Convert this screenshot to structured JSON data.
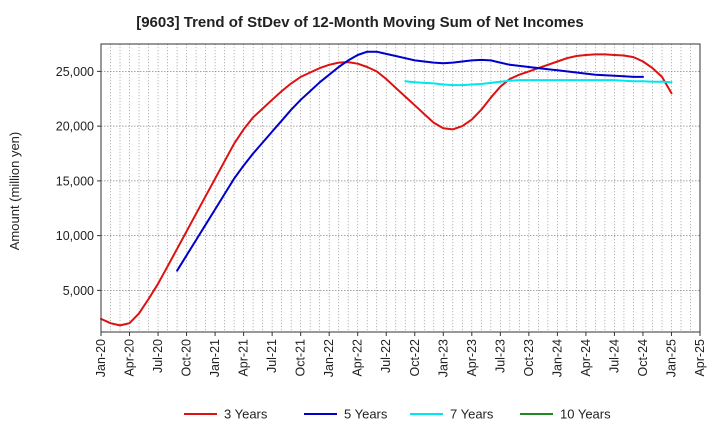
{
  "chart_data": {
    "type": "line",
    "title": "[9603]  Trend of StDev of 12-Month Moving Sum of Net Incomes",
    "ylabel": "Amount (million yen)",
    "xlabel": "",
    "ylim": [
      1200,
      27500
    ],
    "y_ticks": [
      5000,
      10000,
      15000,
      20000,
      25000
    ],
    "y_tick_labels": [
      "5,000",
      "10,000",
      "15,000",
      "20,000",
      "25,000"
    ],
    "x_tick_labels": [
      "Jan-20",
      "Apr-20",
      "Jul-20",
      "Oct-20",
      "Jan-21",
      "Apr-21",
      "Jul-21",
      "Oct-21",
      "Jan-22",
      "Apr-22",
      "Jul-22",
      "Oct-22",
      "Jan-23",
      "Apr-23",
      "Jul-23",
      "Oct-23",
      "Jan-24",
      "Apr-24",
      "Jul-24",
      "Oct-24",
      "Jan-25",
      "Apr-25"
    ],
    "x_start": "Jan-20",
    "x_end": "Apr-25",
    "grid": true,
    "legend_position": "bottom",
    "series": [
      {
        "name": "3 Years",
        "color": "#dd1111",
        "x": [
          "Jan-20",
          "Feb-20",
          "Mar-20",
          "Apr-20",
          "May-20",
          "Jun-20",
          "Jul-20",
          "Aug-20",
          "Sep-20",
          "Oct-20",
          "Nov-20",
          "Dec-20",
          "Jan-21",
          "Feb-21",
          "Mar-21",
          "Apr-21",
          "May-21",
          "Jun-21",
          "Jul-21",
          "Aug-21",
          "Sep-21",
          "Oct-21",
          "Nov-21",
          "Dec-21",
          "Jan-22",
          "Feb-22",
          "Mar-22",
          "Apr-22",
          "May-22",
          "Jun-22",
          "Jul-22",
          "Aug-22",
          "Sep-22",
          "Oct-22",
          "Nov-22",
          "Dec-22",
          "Jan-23",
          "Feb-23",
          "Mar-23",
          "Apr-23",
          "May-23",
          "Jun-23",
          "Jul-23",
          "Aug-23",
          "Sep-23",
          "Oct-23",
          "Nov-23",
          "Dec-23",
          "Jan-24",
          "Feb-24",
          "Mar-24",
          "Apr-24",
          "May-24",
          "Jun-24",
          "Jul-24",
          "Aug-24",
          "Sep-24",
          "Oct-24",
          "Nov-24",
          "Dec-24",
          "Jan-25"
        ],
        "values": [
          2400,
          2000,
          1800,
          2000,
          2900,
          4200,
          5600,
          7200,
          8800,
          10400,
          12000,
          13600,
          15200,
          16800,
          18400,
          19700,
          20800,
          21600,
          22400,
          23200,
          23900,
          24500,
          24900,
          25300,
          25600,
          25800,
          25850,
          25700,
          25400,
          25000,
          24300,
          23500,
          22700,
          21900,
          21100,
          20300,
          19800,
          19700,
          20000,
          20600,
          21500,
          22600,
          23600,
          24300,
          24700,
          25000,
          25300,
          25600,
          25900,
          26200,
          26400,
          26500,
          26550,
          26550,
          26500,
          26450,
          26300,
          25900,
          25300,
          24500,
          23000
        ]
      },
      {
        "name": "5 Years",
        "color": "#0000cc",
        "x": [
          "Jan-20",
          "Feb-20",
          "Mar-20",
          "Apr-20",
          "May-20",
          "Jun-20",
          "Jul-20",
          "Aug-20",
          "Sep-20",
          "Oct-20",
          "Nov-20",
          "Dec-20",
          "Jan-21",
          "Feb-21",
          "Mar-21",
          "Apr-21",
          "May-21",
          "Jun-21",
          "Jul-21",
          "Aug-21",
          "Sep-21",
          "Oct-21",
          "Nov-21",
          "Dec-21",
          "Jan-22",
          "Feb-22",
          "Mar-22",
          "Apr-22",
          "May-22",
          "Jun-22",
          "Jul-22",
          "Aug-22",
          "Sep-22",
          "Oct-22",
          "Nov-22",
          "Dec-22",
          "Jan-23",
          "Feb-23",
          "Mar-23",
          "Apr-23",
          "May-23",
          "Jun-23",
          "Jul-23",
          "Aug-23",
          "Sep-23",
          "Oct-23",
          "Nov-23",
          "Dec-23",
          "Jan-24",
          "Feb-24",
          "Mar-24",
          "Apr-24",
          "May-24",
          "Jun-24",
          "Jul-24",
          "Aug-24",
          "Sep-24",
          "Oct-24",
          "Nov-24",
          "Dec-24",
          "Jan-25"
        ],
        "values": [
          null,
          null,
          null,
          null,
          null,
          null,
          null,
          null,
          6800,
          8200,
          9600,
          11000,
          12400,
          13800,
          15200,
          16400,
          17500,
          18500,
          19500,
          20500,
          21500,
          22400,
          23200,
          24000,
          24700,
          25400,
          26000,
          26500,
          26800,
          26800,
          26600,
          26400,
          26200,
          26000,
          25900,
          25800,
          25750,
          25800,
          25900,
          26000,
          26050,
          26000,
          25800,
          25600,
          25500,
          25400,
          25300,
          25200,
          25100,
          25000,
          24900,
          24800,
          24700,
          24650,
          24600,
          24550,
          24500,
          24500,
          null,
          null,
          null
        ]
      },
      {
        "name": "7 Years",
        "color": "#00e5ee",
        "x": [
          "Jan-20",
          "Feb-20",
          "Mar-20",
          "Apr-20",
          "May-20",
          "Jun-20",
          "Jul-20",
          "Aug-20",
          "Sep-20",
          "Oct-20",
          "Nov-20",
          "Dec-20",
          "Jan-21",
          "Feb-21",
          "Mar-21",
          "Apr-21",
          "May-21",
          "Jun-21",
          "Jul-21",
          "Aug-21",
          "Sep-21",
          "Oct-21",
          "Nov-21",
          "Dec-21",
          "Jan-22",
          "Feb-22",
          "Mar-22",
          "Apr-22",
          "May-22",
          "Jun-22",
          "Jul-22",
          "Aug-22",
          "Sep-22",
          "Oct-22",
          "Nov-22",
          "Dec-22",
          "Jan-23",
          "Feb-23",
          "Mar-23",
          "Apr-23",
          "May-23",
          "Jun-23",
          "Jul-23",
          "Aug-23",
          "Sep-23",
          "Oct-23",
          "Nov-23",
          "Dec-23",
          "Jan-24",
          "Feb-24",
          "Mar-24",
          "Apr-24",
          "May-24",
          "Jun-24",
          "Jul-24",
          "Aug-24",
          "Sep-24",
          "Oct-24",
          "Nov-24",
          "Dec-24",
          "Jan-25"
        ],
        "values": [
          null,
          null,
          null,
          null,
          null,
          null,
          null,
          null,
          null,
          null,
          null,
          null,
          null,
          null,
          null,
          null,
          null,
          null,
          null,
          null,
          null,
          null,
          null,
          null,
          null,
          null,
          null,
          null,
          null,
          null,
          null,
          null,
          24100,
          24000,
          23950,
          23900,
          23800,
          23750,
          23750,
          23800,
          23850,
          23950,
          24050,
          24150,
          24200,
          24200,
          24200,
          24200,
          24200,
          24200,
          24200,
          24200,
          24200,
          24200,
          24200,
          24150,
          24100,
          24100,
          24050,
          24050,
          24000
        ]
      },
      {
        "name": "10 Years",
        "color": "#228822",
        "x": [],
        "values": []
      }
    ]
  }
}
